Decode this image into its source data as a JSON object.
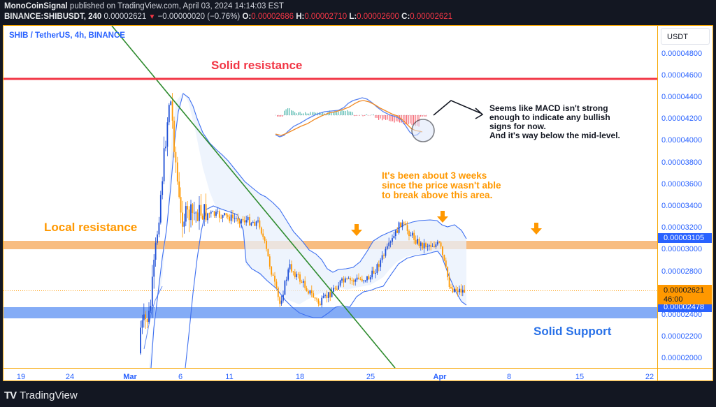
{
  "header": {
    "author": "MonoCoinSignal",
    "published_text": "published on TradingView.com, April 03, 2024 14:14:03 EST",
    "symbol_interval": "BINANCE:SHIBUSDT, 240",
    "last_price": "0.00002621",
    "change_arrow": "▼",
    "change": "−0.00000020 (−0.76%)",
    "o_label": "O:",
    "o_value": "0.00002686",
    "h_label": "H:",
    "h_value": "0.00002710",
    "l_label": "L:",
    "l_value": "0.00002600",
    "c_label": "C:",
    "c_value": "0.00002621"
  },
  "chart": {
    "symbol_title": "SHIB / TetherUS, 4h, BINANCE",
    "currency": "USDT",
    "price_labels": [
      "0.00004800",
      "0.00004600",
      "0.00004400",
      "0.00004200",
      "0.00004000",
      "0.00003800",
      "0.00003600",
      "0.00003400",
      "0.00003200",
      "0.00003000",
      "0.00002800",
      "0.00002400",
      "0.00002200",
      "0.00002000"
    ],
    "tag_resistance": "0.00003105",
    "tag_last_price": "0.00002621",
    "tag_countdown": "46:00",
    "tag_support": "0.00002478",
    "time_labels": [
      "19",
      "24",
      "Mar",
      "6",
      "11",
      "18",
      "25",
      "Apr",
      "8",
      "15",
      "22"
    ],
    "colors": {
      "accent_blue": "#2962ff",
      "up_candle": "#1e4fd6",
      "down_candle": "#ff9800",
      "resistance_red": "#f23645",
      "local_resistance_zone": "#f7b26b",
      "support_zone": "#6f9ef5",
      "trendline_green": "#2e8b2e",
      "bollinger": "#3d6ff0"
    }
  },
  "annotations": {
    "solid_resistance": "Solid resistance",
    "local_resistance": "Local resistance",
    "solid_support": "Solid Support",
    "weeks_note": [
      "It's been about 3 weeks",
      "since the price wasn't able",
      "to break above this area."
    ],
    "macd_note": [
      "Seems like MACD isn't strong",
      "enough to indicate any bullish",
      "signs for now.",
      "And it's way below the mid-level."
    ]
  },
  "footer": {
    "brand": "TradingView",
    "logo": "TV"
  },
  "chart_data": {
    "type": "candlestick",
    "title": "SHIB / TetherUS, 4h, BINANCE",
    "xlabel": "",
    "ylabel": "USDT",
    "ylim": [
      1.96e-05,
      4.94e-05
    ],
    "x_ticks": [
      "19",
      "24",
      "Mar",
      "6",
      "11",
      "18",
      "25",
      "Apr",
      "8",
      "15",
      "22"
    ],
    "y_ticks": [
      2e-05,
      2.2e-05,
      2.4e-05,
      2.6e-05,
      2.8e-05,
      3e-05,
      3.2e-05,
      3.4e-05,
      3.6e-05,
      3.8e-05,
      4e-05,
      4.2e-05,
      4.4e-05,
      4.6e-05,
      4.8e-05
    ],
    "levels": {
      "solid_resistance": 4.56e-05,
      "local_resistance_zone": [
        3.01e-05,
        3.1e-05
      ],
      "support_zone": [
        2.39e-05,
        2.48e-05
      ],
      "last_price": 2.621e-05
    },
    "approx_close_path": [
      {
        "date": "Mar 1",
        "price": 2.15e-05
      },
      {
        "date": "Mar 3",
        "price": 2.4e-05
      },
      {
        "date": "Mar 5",
        "price": 4.45e-05
      },
      {
        "date": "Mar 6",
        "price": 3.3e-05
      },
      {
        "date": "Mar 8",
        "price": 3.35e-05
      },
      {
        "date": "Mar 11",
        "price": 3.3e-05
      },
      {
        "date": "Mar 14",
        "price": 3.25e-05
      },
      {
        "date": "Mar 16",
        "price": 2.5e-05
      },
      {
        "date": "Mar 17",
        "price": 2.85e-05
      },
      {
        "date": "Mar 20",
        "price": 2.5e-05
      },
      {
        "date": "Mar 22",
        "price": 2.7e-05
      },
      {
        "date": "Mar 25",
        "price": 2.75e-05
      },
      {
        "date": "Mar 27",
        "price": 3.05e-05
      },
      {
        "date": "Mar 28",
        "price": 3.25e-05
      },
      {
        "date": "Mar 30",
        "price": 3.05e-05
      },
      {
        "date": "Apr 1",
        "price": 3.05e-05
      },
      {
        "date": "Apr 2",
        "price": 2.65e-05
      },
      {
        "date": "Apr 3",
        "price": 2.621e-05
      }
    ],
    "indicators": [
      "Bollinger Bands",
      "MACD (inset)"
    ],
    "annotations": [
      "Solid resistance",
      "Local resistance",
      "Solid Support",
      "Descending green trendline from Mar 5 high"
    ]
  }
}
